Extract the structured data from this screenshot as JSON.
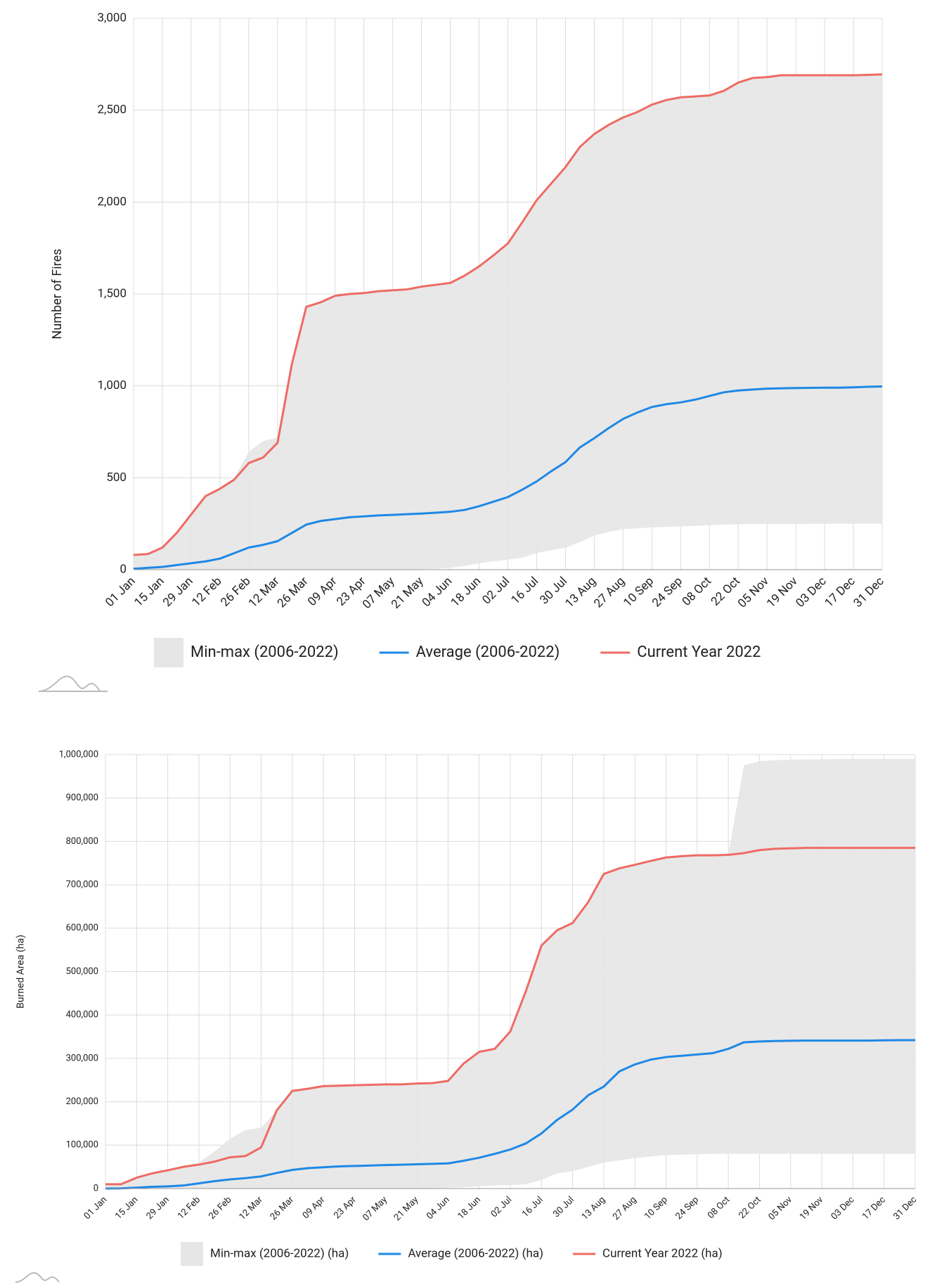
{
  "chart_data": [
    {
      "type": "line",
      "y_label": "Number of Fires",
      "categories": [
        "01 Jan",
        null,
        "15 Jan",
        null,
        "29 Jan",
        null,
        "12 Feb",
        null,
        "26 Feb",
        null,
        "12 Mar",
        null,
        "26 Mar",
        null,
        "09 Apr",
        null,
        "23 Apr",
        null,
        "07 May",
        null,
        "21 May",
        null,
        "04 Jun",
        null,
        "18 Jun",
        null,
        "02 Jul",
        null,
        "16 Jul",
        null,
        "30 Jul",
        null,
        "13 Aug",
        null,
        "27 Aug",
        null,
        "10 Sep",
        null,
        "24 Sep",
        null,
        "08 Oct",
        null,
        "22 Oct",
        null,
        "05 Nov",
        null,
        "19 Nov",
        null,
        "03 Dec",
        null,
        "17 Dec",
        null,
        "31 Dec"
      ],
      "series": [
        {
          "name": "Min-max (2006-2022)",
          "color": "#e6e6e6",
          "upper": [
            80,
            85,
            120,
            200,
            300,
            400,
            440,
            500,
            640,
            700,
            720,
            1120,
            1430,
            1455,
            1490,
            1500,
            1505,
            1515,
            1520,
            1525,
            1540,
            1550,
            1560,
            1600,
            1650,
            1710,
            1775,
            1890,
            2010,
            2100,
            2190,
            2300,
            2370,
            2420,
            2460,
            2490,
            2530,
            2555,
            2570,
            2575,
            2580,
            2605,
            2650,
            2675,
            2680,
            2690,
            2690,
            2690,
            2690,
            2690,
            2690,
            2692,
            2695
          ],
          "lower": [
            0,
            0,
            0,
            0,
            0,
            0,
            0,
            0,
            0,
            0,
            0,
            0,
            0,
            0,
            0,
            0,
            0,
            0,
            0,
            0,
            3,
            5,
            10,
            20,
            35,
            45,
            55,
            65,
            90,
            105,
            120,
            150,
            185,
            205,
            220,
            225,
            230,
            233,
            236,
            238,
            242,
            245,
            247,
            248,
            248,
            249,
            249,
            249,
            250,
            250,
            250,
            250,
            250
          ]
        },
        {
          "name": "Average (2006-2022)",
          "color": "#1e88e5",
          "values": [
            5,
            10,
            15,
            25,
            35,
            45,
            60,
            90,
            120,
            135,
            155,
            200,
            245,
            265,
            275,
            285,
            290,
            295,
            298,
            302,
            305,
            310,
            315,
            325,
            345,
            370,
            395,
            435,
            480,
            535,
            585,
            665,
            715,
            770,
            820,
            855,
            885,
            900,
            910,
            925,
            945,
            965,
            975,
            980,
            985,
            987,
            988,
            989,
            990,
            990,
            992,
            995,
            997
          ]
        },
        {
          "name": "Current Year 2022",
          "color": "#ee6b64",
          "values": [
            80,
            85,
            120,
            200,
            300,
            400,
            440,
            490,
            580,
            610,
            690,
            1120,
            1430,
            1455,
            1490,
            1500,
            1505,
            1515,
            1520,
            1525,
            1540,
            1550,
            1560,
            1600,
            1650,
            1710,
            1775,
            1890,
            2010,
            2100,
            2190,
            2300,
            2370,
            2420,
            2460,
            2490,
            2530,
            2555,
            2570,
            2575,
            2580,
            2605,
            2650,
            2675,
            2680,
            2690,
            2690,
            2690,
            2690,
            2690,
            2690,
            2692,
            2695
          ]
        }
      ],
      "ylim": [
        0,
        3000
      ],
      "yticks": [
        0,
        500,
        {
          "value": 1000,
          "label": "1,000"
        },
        {
          "value": 1500,
          "label": "1,500"
        },
        {
          "value": 2000,
          "label": "2,000"
        },
        {
          "value": 2500,
          "label": "2,500"
        },
        {
          "value": 3000,
          "label": "3,000"
        }
      ],
      "grid": true,
      "legend": "bottom"
    },
    {
      "type": "line",
      "y_label": "Burned Area (ha)",
      "categories": [
        "01 Jan",
        null,
        "15 Jan",
        null,
        "29 Jan",
        null,
        "12 Feb",
        null,
        "26 Feb",
        null,
        "12 Mar",
        null,
        "26 Mar",
        null,
        "09 Apr",
        null,
        "23 Apr",
        null,
        "07 May",
        null,
        "21 May",
        null,
        "04 Jun",
        null,
        "18 Jun",
        null,
        "02 Jul",
        null,
        "16 Jul",
        null,
        "30 Jul",
        null,
        "13 Aug",
        null,
        "27 Aug",
        null,
        "10 Sep",
        null,
        "24 Sep",
        null,
        "08 Oct",
        null,
        "22 Oct",
        null,
        "05 Nov",
        null,
        "19 Nov",
        null,
        "03 Dec",
        null,
        "17 Dec",
        null,
        "31 Dec"
      ],
      "series": [
        {
          "name": "Min-max (2006-2022) (ha)",
          "color": "#e6e6e6",
          "upper": [
            10000,
            10000,
            25000,
            35000,
            42000,
            52000,
            60000,
            85000,
            115000,
            135000,
            140000,
            180000,
            225000,
            230000,
            236000,
            237000,
            238000,
            239000,
            240000,
            240000,
            242000,
            243000,
            248000,
            288000,
            315000,
            322000,
            362000,
            455000,
            560000,
            595000,
            612000,
            660000,
            725000,
            738000,
            746000,
            755000,
            763000,
            766000,
            768000,
            768000,
            769000,
            975000,
            985000,
            987000,
            988000,
            989000,
            989000,
            990000,
            990000,
            990000,
            990000,
            990000,
            990000
          ],
          "lower": [
            0,
            0,
            0,
            0,
            0,
            0,
            0,
            0,
            0,
            0,
            0,
            0,
            0,
            0,
            0,
            0,
            0,
            0,
            0,
            0,
            0,
            0,
            2000,
            3000,
            5000,
            7000,
            8000,
            10000,
            20000,
            35000,
            40000,
            50000,
            60000,
            65000,
            70000,
            74000,
            77000,
            78000,
            79000,
            80000,
            80000,
            80000,
            80000,
            80000,
            80000,
            80000,
            80000,
            80000,
            80000,
            80000,
            80000,
            80000,
            80000
          ]
        },
        {
          "name": "Average (2006-2022) (ha)",
          "color": "#1e88e5",
          "values": [
            0,
            500,
            2000,
            4000,
            5000,
            7000,
            12000,
            17000,
            21000,
            24000,
            28000,
            36000,
            43000,
            47000,
            49000,
            51000,
            52000,
            53000,
            54000,
            55000,
            56000,
            57000,
            58000,
            64000,
            71000,
            80000,
            90000,
            104000,
            127000,
            158000,
            182000,
            215000,
            235000,
            270000,
            286000,
            297000,
            303000,
            306000,
            309000,
            312000,
            322000,
            337000,
            339000,
            340000,
            340500,
            341000,
            341000,
            341000,
            341000,
            341000,
            341500,
            342000,
            342000
          ]
        },
        {
          "name": "Current Year 2022 (ha)",
          "color": "#ee6b64",
          "values": [
            10000,
            10000,
            25000,
            35000,
            42000,
            50000,
            55000,
            62000,
            72000,
            75000,
            95000,
            180000,
            225000,
            230000,
            236000,
            237000,
            238000,
            239000,
            240000,
            240000,
            242000,
            243000,
            248000,
            288000,
            315000,
            322000,
            362000,
            455000,
            560000,
            595000,
            612000,
            660000,
            725000,
            738000,
            746000,
            755000,
            763000,
            766000,
            768000,
            768000,
            769000,
            773000,
            780000,
            783000,
            784000,
            785000,
            785000,
            785000,
            785000,
            785000,
            785000,
            785000,
            785000
          ]
        }
      ],
      "ylim": [
        0,
        1000000
      ],
      "yticks": [
        0,
        {
          "value": 100000,
          "label": "100,000"
        },
        {
          "value": 200000,
          "label": "200,000"
        },
        {
          "value": 300000,
          "label": "300,000"
        },
        {
          "value": 400000,
          "label": "400,000"
        },
        {
          "value": 500000,
          "label": "500,000"
        },
        {
          "value": 600000,
          "label": "600,000"
        },
        {
          "value": 700000,
          "label": "700,000"
        },
        {
          "value": 800000,
          "label": "800,000"
        },
        {
          "value": 900000,
          "label": "900,000"
        },
        {
          "value": 1000000,
          "label": "1,000,000"
        }
      ],
      "grid": true,
      "legend": "bottom"
    }
  ]
}
